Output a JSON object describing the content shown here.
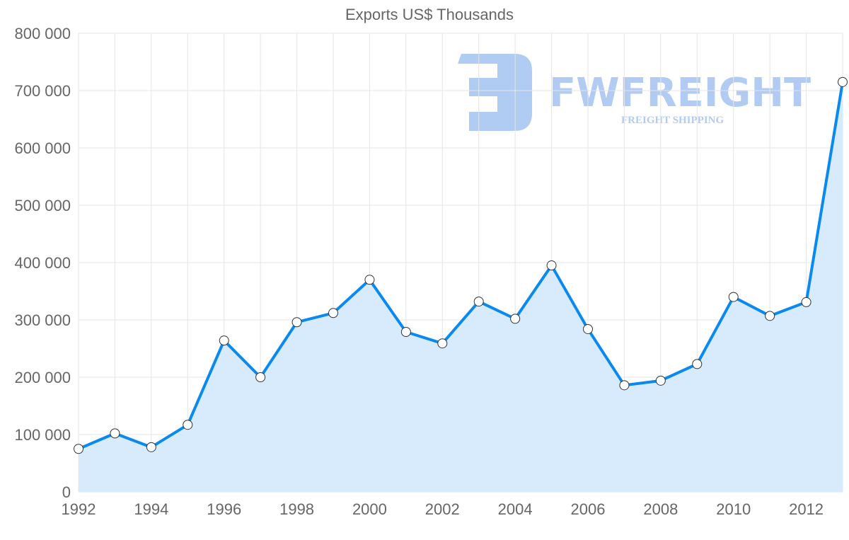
{
  "chart_data": {
    "type": "area",
    "title": "Exports US$ Thousands",
    "xlabel": "",
    "ylabel": "",
    "x": [
      1992,
      1993,
      1994,
      1995,
      1996,
      1997,
      1998,
      1999,
      2000,
      2001,
      2002,
      2003,
      2004,
      2005,
      2006,
      2007,
      2008,
      2009,
      2010,
      2011,
      2012,
      2013
    ],
    "series": [
      {
        "name": "Exports US$ Thousands",
        "values": [
          75000,
          102000,
          78000,
          117000,
          264000,
          200000,
          296000,
          312000,
          370000,
          279000,
          259000,
          332000,
          302000,
          395000,
          284000,
          186000,
          194000,
          223000,
          340000,
          307000,
          331000,
          715000
        ]
      }
    ],
    "ylim": [
      0,
      800000
    ],
    "xlim": [
      1992,
      2013
    ],
    "y_ticks": [
      "0",
      "100 000",
      "200 000",
      "300 000",
      "400 000",
      "500 000",
      "600 000",
      "700 000",
      "800 000"
    ],
    "x_ticks": [
      "1992",
      "1994",
      "1996",
      "1998",
      "2000",
      "2002",
      "2004",
      "2006",
      "2008",
      "2010",
      "2012"
    ],
    "grid": true,
    "legend": "none",
    "colors": {
      "line": "#0a8af0",
      "fill": "#d8ebfc",
      "grid": "#e5e5e5",
      "text": "#666666",
      "watermark": "#a9c6f2"
    }
  },
  "watermark": {
    "brand": "FWFREIGHT",
    "tagline": "FREIGHT SHIPPING"
  }
}
